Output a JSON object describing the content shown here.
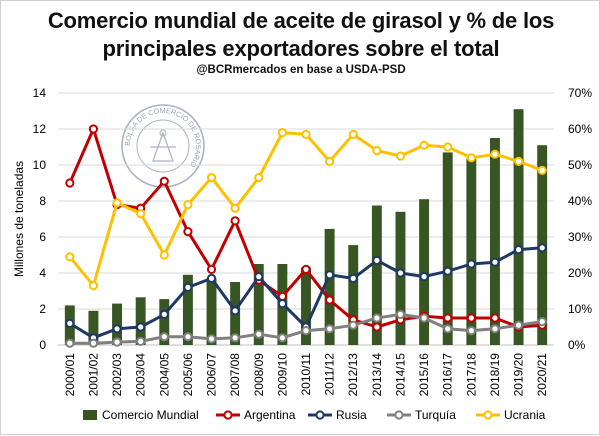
{
  "title_line1": "Comercio mundial de aceite de girasol y % de los",
  "title_line2": "principales exportadores sobre el total",
  "subtitle": "@BCRmercados  en base a USDA-PSD",
  "seal_text": "BOLSA DE COMERCIO DE ROSARIO",
  "chart_data": {
    "type": "bar",
    "title": "Comercio mundial de aceite de girasol y % de los principales exportadores sobre el total",
    "subtitle": "@BCRmercados  en base a USDA-PSD",
    "categories": [
      "2000/01",
      "2001/02",
      "2002/03",
      "2003/04",
      "2004/05",
      "2005/06",
      "2006/07",
      "2007/08",
      "2008/09",
      "2009/10",
      "2010/11",
      "2011/12",
      "2012/13",
      "2013/14",
      "2014/15",
      "2015/16",
      "2016/17",
      "2017/18",
      "2018/19",
      "2019/20",
      "2020/21"
    ],
    "ylabel": "Millones de toneladas",
    "ylim": [
      0,
      14
    ],
    "yticks": [
      "0",
      "2",
      "4",
      "6",
      "8",
      "10",
      "12",
      "14"
    ],
    "y2lim": [
      0,
      70
    ],
    "y2ticks": [
      "0%",
      "10%",
      "20%",
      "30%",
      "40%",
      "50%",
      "60%",
      "70%"
    ],
    "grid": true,
    "legend_position": "bottom",
    "bar_series": {
      "name": "Comercio Mundial",
      "color": "#375623",
      "axis": "left",
      "values": [
        2.2,
        1.9,
        2.3,
        2.65,
        2.55,
        3.9,
        3.7,
        3.5,
        4.5,
        4.5,
        4.3,
        6.45,
        5.55,
        7.75,
        7.4,
        8.1,
        10.7,
        10.35,
        11.5,
        13.1,
        11.1
      ]
    },
    "line_series": [
      {
        "name": "Argentina",
        "color": "#C00000",
        "axis": "right",
        "values": [
          45,
          60,
          39,
          38,
          45.5,
          31.5,
          21,
          34.5,
          18,
          13.5,
          21,
          12.5,
          7,
          5,
          7,
          8,
          7.5,
          7.5,
          7.5,
          5,
          5.5
        ]
      },
      {
        "name": "Rusia",
        "color": "#1F3864",
        "axis": "right",
        "values": [
          6,
          2,
          4.5,
          5,
          8.5,
          16,
          18.5,
          9.5,
          19,
          11.5,
          5,
          19.5,
          18.5,
          23.5,
          20,
          19,
          20.5,
          22.5,
          23,
          26.5,
          27
        ]
      },
      {
        "name": "Turquía",
        "color": "#808080",
        "axis": "right",
        "values": [
          0.5,
          0.5,
          0.8,
          1,
          2.3,
          2.3,
          1.7,
          2,
          3,
          2,
          4,
          4.5,
          5.5,
          7.5,
          8.5,
          7.5,
          4.5,
          4,
          4.5,
          5.5,
          6.5
        ]
      },
      {
        "name": "Ucrania",
        "color": "#FFC000",
        "axis": "right",
        "values": [
          24.5,
          16.5,
          39.5,
          36.5,
          25,
          39,
          46.5,
          38,
          46.5,
          59,
          58.5,
          51,
          58.5,
          54,
          52.5,
          55.5,
          55,
          52,
          53,
          51,
          48.5
        ]
      }
    ]
  }
}
